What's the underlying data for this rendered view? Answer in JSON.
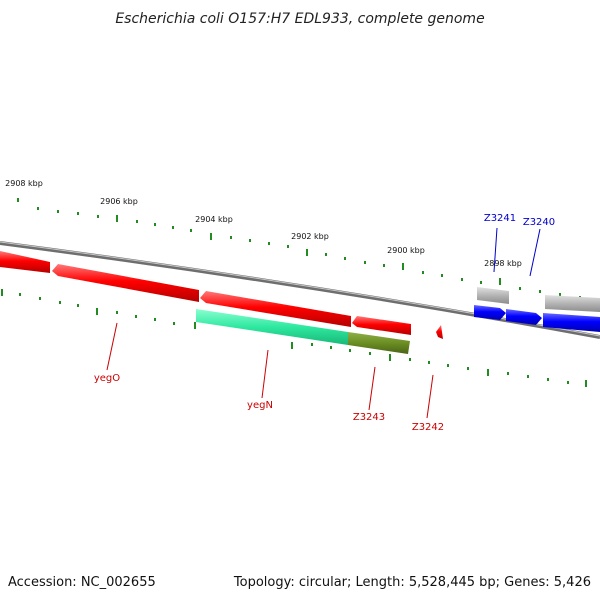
{
  "title": "Escherichia coli O157:H7 EDL933, complete genome",
  "footer": {
    "accession": "Accession: NC_002655",
    "summary": "Topology: circular; Length: 5,528,445 bp; Genes: 5,426"
  },
  "tick_labels": [
    "2908 kbp",
    "2906 kbp",
    "2904 kbp",
    "2902 kbp",
    "2900 kbp",
    "2898 kbp"
  ],
  "gene_labels": {
    "yegO": "yegO",
    "yegN": "yegN",
    "z3243": "Z3243",
    "z3242": "Z3242",
    "z3241": "Z3241",
    "z3240": "Z3240"
  },
  "colors": {
    "reverse_strand_gene": "#ff0000",
    "forward_strand_gene": "#0000ff",
    "green_gene": "#33ee99",
    "olive_gene": "#6b8e23",
    "grey_feature": "#aaaaaa",
    "ruler_ticks": "#228b22",
    "backbone": "#888888"
  }
}
